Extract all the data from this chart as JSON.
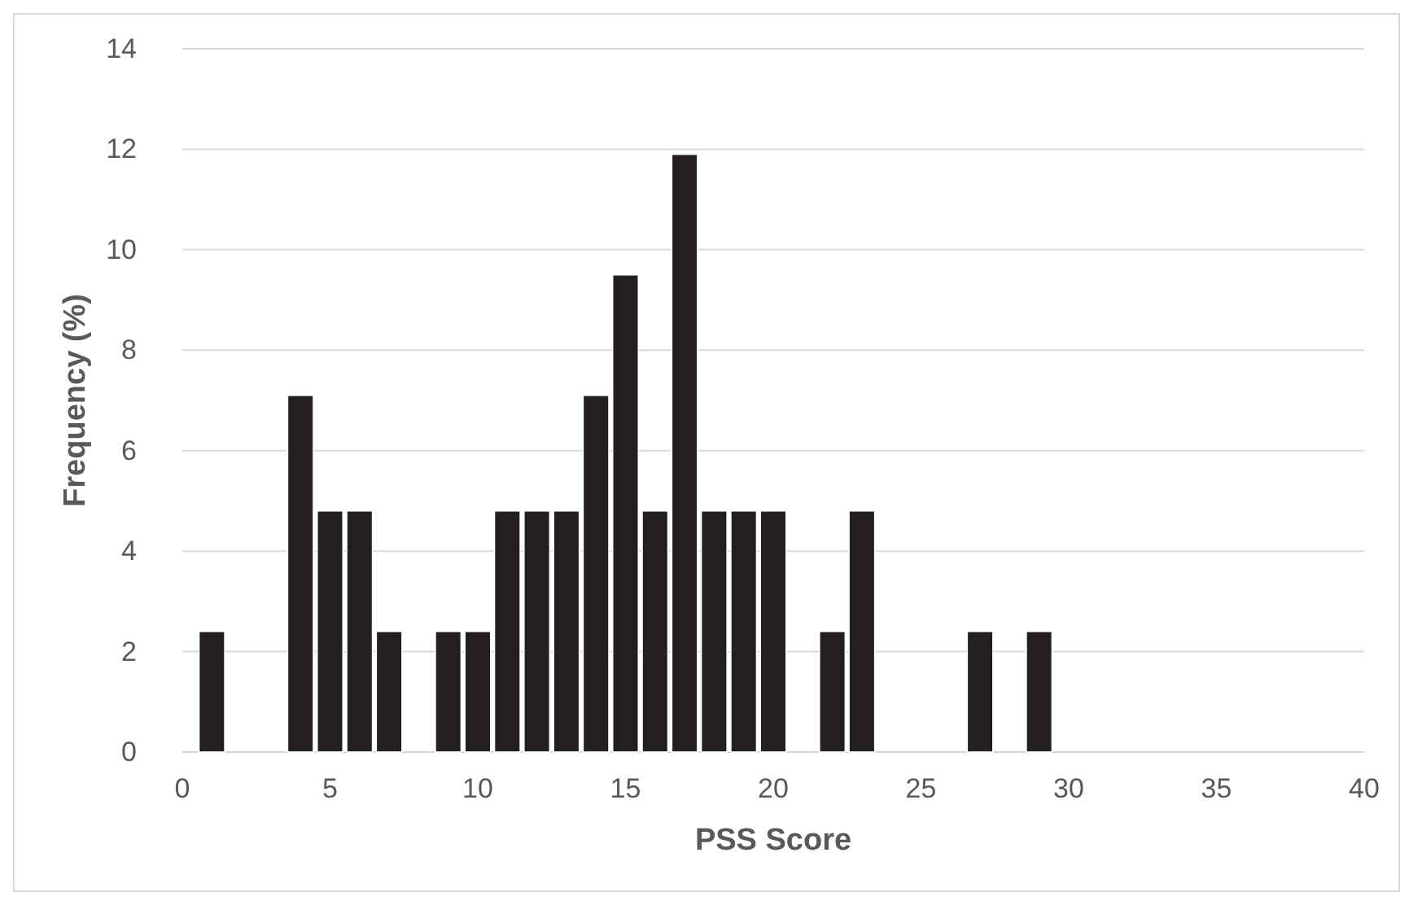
{
  "chart_data": {
    "type": "bar",
    "xlabel": "PSS Score",
    "ylabel": "Frequency (%)",
    "x": [
      1,
      4,
      5,
      6,
      7,
      9,
      10,
      11,
      12,
      13,
      14,
      15,
      16,
      17,
      18,
      19,
      20,
      22,
      23,
      27,
      29
    ],
    "values": [
      2.4,
      7.1,
      4.8,
      4.8,
      2.4,
      2.4,
      2.4,
      4.8,
      4.8,
      4.8,
      7.1,
      9.5,
      4.8,
      11.9,
      4.8,
      4.8,
      4.8,
      2.4,
      4.8,
      2.4,
      2.4
    ],
    "color": "#231f20",
    "xlim": [
      0,
      40
    ],
    "xticks": [
      0,
      5,
      10,
      15,
      20,
      25,
      30,
      35,
      40
    ],
    "ylim": [
      0,
      14
    ],
    "yticks": [
      0,
      2,
      4,
      6,
      8,
      10,
      12,
      14
    ],
    "grid": "y"
  }
}
